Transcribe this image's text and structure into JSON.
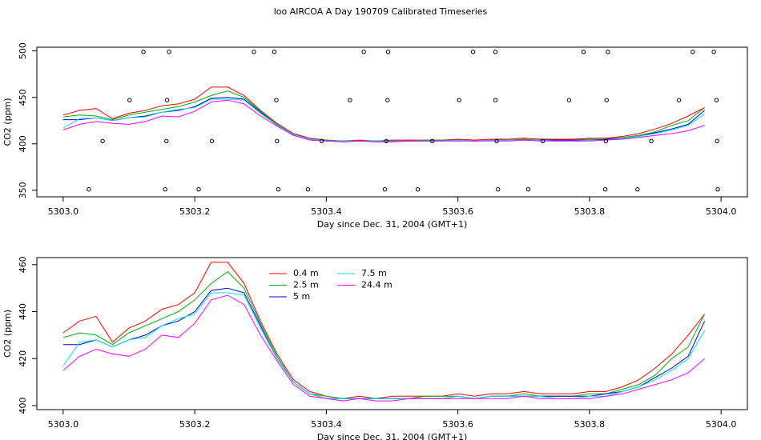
{
  "chart_data": [
    {
      "type": "line",
      "title": "loo AIRCOA A  Day 190709  Calibrated Timeseries",
      "xlabel": "Day since Dec. 31, 2004 (GMT+1)",
      "ylabel": "CO2 (ppm)",
      "xlim": [
        5302.96,
        5304.04
      ],
      "ylim": [
        343,
        504
      ],
      "xticks": [
        {
          "value": 5303,
          "label": "5303.0"
        },
        5303.2,
        5303.4,
        5303.6,
        5303.8,
        {
          "value": 5304,
          "label": "5304.0"
        }
      ],
      "yticks": [
        350,
        400,
        450,
        500
      ],
      "x": [
        5303,
        5303.025,
        5303.05,
        5303.075,
        5303.1,
        5303.125,
        5303.15,
        5303.175,
        5303.2,
        5303.225,
        5303.25,
        5303.275,
        5303.3,
        5303.325,
        5303.35,
        5303.375,
        5303.4,
        5303.425,
        5303.45,
        5303.475,
        5303.5,
        5303.525,
        5303.55,
        5303.575,
        5303.6,
        5303.625,
        5303.65,
        5303.675,
        5303.7,
        5303.725,
        5303.75,
        5303.775,
        5303.8,
        5303.825,
        5303.85,
        5303.875,
        5303.9,
        5303.925,
        5303.95,
        5303.975
      ],
      "series": [
        {
          "color": "#ff0000",
          "values": [
            431,
            436,
            438,
            427,
            433,
            436,
            441,
            443,
            448,
            461,
            461,
            452,
            436,
            422,
            411,
            406,
            404,
            403,
            404,
            403,
            404,
            404,
            404,
            404,
            405,
            404,
            405,
            405,
            406,
            405,
            405,
            405,
            406,
            406,
            408,
            411,
            416,
            422,
            430,
            439
          ]
        },
        {
          "color": "#00b000",
          "values": [
            429,
            431,
            430,
            426,
            431,
            434,
            437,
            440,
            445,
            452,
            457,
            450,
            435,
            421,
            410,
            405,
            404,
            403,
            403,
            403,
            403,
            403,
            404,
            404,
            404,
            403,
            404,
            404,
            405,
            404,
            404,
            404,
            405,
            405,
            407,
            409,
            413,
            420,
            425,
            439
          ]
        },
        {
          "color": "#0000cc",
          "values": [
            426,
            426,
            428,
            425,
            428,
            430,
            434,
            436,
            440,
            449,
            450,
            448,
            434,
            420,
            410,
            405,
            403,
            403,
            403,
            403,
            403,
            403,
            403,
            403,
            404,
            403,
            404,
            404,
            404,
            404,
            404,
            404,
            404,
            405,
            406,
            408,
            412,
            416,
            421,
            436
          ]
        },
        {
          "color": "#00e5ee",
          "values": [
            417,
            427,
            428,
            425,
            428,
            429,
            434,
            437,
            439,
            448,
            448,
            447,
            433,
            420,
            410,
            405,
            403,
            403,
            403,
            403,
            403,
            403,
            403,
            403,
            404,
            403,
            404,
            404,
            404,
            404,
            403,
            403,
            404,
            404,
            406,
            408,
            411,
            415,
            420,
            432
          ]
        },
        {
          "color": "#ff00ff",
          "values": [
            415,
            421,
            424,
            422,
            421,
            424,
            430,
            429,
            435,
            445,
            447,
            443,
            430,
            419,
            409,
            404,
            403,
            402,
            403,
            402,
            402,
            403,
            403,
            403,
            403,
            403,
            403,
            403,
            404,
            403,
            403,
            403,
            403,
            404,
            405,
            407,
            409,
            411,
            414,
            420
          ]
        }
      ],
      "calibration": {
        "x": [
          5303.122,
          5303.161,
          5303.29,
          5303.321,
          5303.457,
          5303.494,
          5303.623,
          5303.657,
          5303.791,
          5303.828,
          5303.957,
          5303.989,
          5303.101,
          5303.158,
          5303.324,
          5303.436,
          5303.493,
          5303.602,
          5303.657,
          5303.769,
          5303.826,
          5303.936,
          5303.993,
          5303.06,
          5303.157,
          5303.226,
          5303.325,
          5303.393,
          5303.491,
          5303.561,
          5303.659,
          5303.729,
          5303.825,
          5303.894,
          5303.994,
          5303.039,
          5303.155,
          5303.206,
          5303.327,
          5303.372,
          5303.489,
          5303.539,
          5303.661,
          5303.707,
          5303.824,
          5303.873,
          5303.995
        ],
        "values": [
          499,
          499,
          499,
          499,
          499,
          499,
          499,
          499,
          499,
          499,
          499,
          499,
          447,
          447,
          447,
          447,
          447,
          447,
          447,
          447,
          447,
          447,
          447,
          403,
          403,
          403,
          403,
          403,
          403,
          403,
          403,
          403,
          403,
          403,
          403,
          351,
          351,
          351,
          351,
          351,
          351,
          351,
          351,
          351,
          351,
          351,
          351
        ]
      }
    },
    {
      "type": "line",
      "xlabel": "Day since Dec. 31, 2004 (GMT+1)",
      "ylabel": "CO2 (ppm)",
      "xlim": [
        5302.96,
        5304.04
      ],
      "ylim": [
        398.3,
        463
      ],
      "xticks": [
        {
          "value": 5303,
          "label": "5303.0"
        },
        5303.2,
        5303.4,
        5303.6,
        5303.8,
        {
          "value": 5304,
          "label": "5304.0"
        }
      ],
      "yticks": [
        400,
        420,
        440,
        460
      ],
      "legend": "top-left",
      "x": [
        5303,
        5303.025,
        5303.05,
        5303.075,
        5303.1,
        5303.125,
        5303.15,
        5303.175,
        5303.2,
        5303.225,
        5303.25,
        5303.275,
        5303.3,
        5303.325,
        5303.35,
        5303.375,
        5303.4,
        5303.425,
        5303.45,
        5303.475,
        5303.5,
        5303.525,
        5303.55,
        5303.575,
        5303.6,
        5303.625,
        5303.65,
        5303.675,
        5303.7,
        5303.725,
        5303.75,
        5303.775,
        5303.8,
        5303.825,
        5303.85,
        5303.875,
        5303.9,
        5303.925,
        5303.95,
        5303.975
      ],
      "series": [
        {
          "name": "0.4 m",
          "color": "#ff0000",
          "values": [
            431,
            436,
            438,
            427,
            433,
            436,
            441,
            443,
            448,
            461,
            461,
            452,
            436,
            422,
            411,
            406,
            404,
            403,
            404,
            403,
            404,
            404,
            404,
            404,
            405,
            404,
            405,
            405,
            406,
            405,
            405,
            405,
            406,
            406,
            408,
            411,
            416,
            422,
            430,
            439
          ]
        },
        {
          "name": "2.5 m",
          "color": "#00b000",
          "values": [
            429,
            431,
            430,
            426,
            431,
            434,
            437,
            440,
            445,
            452,
            457,
            450,
            435,
            421,
            410,
            405,
            404,
            403,
            403,
            403,
            403,
            403,
            404,
            404,
            404,
            403,
            404,
            404,
            405,
            404,
            404,
            404,
            405,
            405,
            407,
            409,
            413,
            420,
            425,
            439
          ]
        },
        {
          "name": "5 m",
          "color": "#0000cc",
          "values": [
            426,
            426,
            428,
            425,
            428,
            430,
            434,
            436,
            440,
            449,
            450,
            448,
            434,
            420,
            410,
            405,
            403,
            403,
            403,
            403,
            403,
            403,
            403,
            403,
            404,
            403,
            404,
            404,
            404,
            404,
            404,
            404,
            404,
            405,
            406,
            408,
            412,
            416,
            421,
            436
          ]
        },
        {
          "name": "7.5 m",
          "color": "#00e5ee",
          "values": [
            417,
            427,
            428,
            425,
            428,
            429,
            434,
            437,
            439,
            448,
            448,
            447,
            433,
            420,
            410,
            405,
            403,
            403,
            403,
            403,
            403,
            403,
            403,
            403,
            404,
            403,
            404,
            404,
            404,
            404,
            403,
            403,
            404,
            404,
            406,
            408,
            411,
            415,
            420,
            432
          ]
        },
        {
          "name": "24.4 m",
          "color": "#ff00ff",
          "values": [
            415,
            421,
            424,
            422,
            421,
            424,
            430,
            429,
            435,
            445,
            447,
            443,
            430,
            419,
            409,
            404,
            403,
            402,
            403,
            402,
            402,
            403,
            403,
            403,
            403,
            403,
            403,
            403,
            404,
            403,
            403,
            403,
            403,
            404,
            405,
            407,
            409,
            411,
            414,
            420
          ]
        }
      ]
    }
  ]
}
